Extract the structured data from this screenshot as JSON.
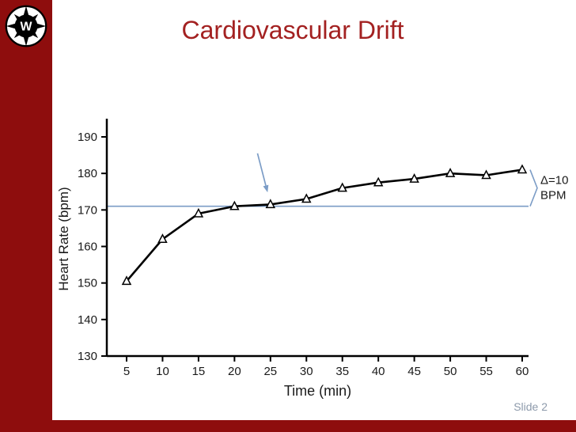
{
  "slide": {
    "title": "Cardiovascular Drift",
    "slide_number": "Slide 2"
  },
  "compass": {
    "letter": "W"
  },
  "colors": {
    "sidebar_maroon": "#8E0D0D",
    "title_red": "#A32121",
    "chart_blue": "#7B9CC6",
    "slide_number_gray": "#8D9AAB",
    "curve_black": "#000000",
    "text_black": "#1A1A1A"
  },
  "chart_data": {
    "type": "line",
    "title": "",
    "xlabel": "Time (min)",
    "ylabel": "Heart Rate (bpm)",
    "x": [
      5,
      10,
      15,
      20,
      25,
      30,
      35,
      40,
      45,
      50,
      55,
      60
    ],
    "series": [
      {
        "name": "Heart rate",
        "values": [
          150.5,
          162,
          169,
          171,
          171.5,
          173,
          176,
          177.5,
          178.5,
          180,
          179.5,
          181
        ]
      }
    ],
    "ylim": [
      130,
      190
    ],
    "yticks": [
      130,
      140,
      150,
      160,
      170,
      180,
      190
    ],
    "xticks": [
      5,
      10,
      15,
      20,
      25,
      30,
      35,
      40,
      45,
      50,
      55,
      60
    ],
    "marker": "open-triangle",
    "grid": "off",
    "legend": "none",
    "reference_line": {
      "value": 171
    },
    "delta_annotation": {
      "line1": "Δ=10",
      "line2": "BPM",
      "from_value": 181,
      "to_value": 171
    },
    "arrow": {
      "from": [
        23.2,
        185.5
      ],
      "to": [
        24.6,
        174.8
      ]
    }
  }
}
